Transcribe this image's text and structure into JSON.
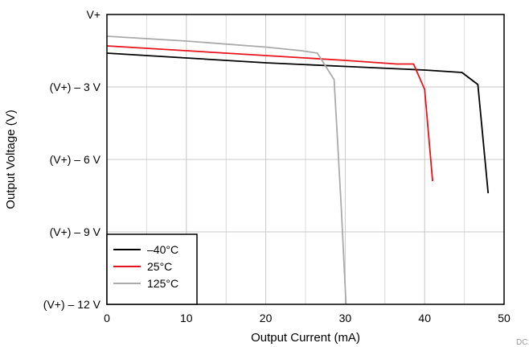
{
  "chart_data": {
    "type": "line",
    "title": "",
    "xlabel": "Output Current (mA)",
    "ylabel": "Output Voltage (V)",
    "xlim": [
      0,
      50
    ],
    "ylim": [
      -12,
      0
    ],
    "x_ticks": [
      {
        "value": 0,
        "label": "0"
      },
      {
        "value": 10,
        "label": "10"
      },
      {
        "value": 20,
        "label": "20"
      },
      {
        "value": 30,
        "label": "30"
      },
      {
        "value": 40,
        "label": "40"
      },
      {
        "value": 50,
        "label": "50"
      }
    ],
    "y_ticks": [
      {
        "value": 0,
        "label": "V+"
      },
      {
        "value": -3,
        "label": "(V+) – 3 V"
      },
      {
        "value": -6,
        "label": "(V+) – 6 V"
      },
      {
        "value": -9,
        "label": "(V+) – 9 V"
      },
      {
        "value": -12,
        "label": "(V+) – 12 V"
      }
    ],
    "grid": true,
    "legend_position": "bottom-left",
    "series": [
      {
        "name": "–40°C",
        "color": "#000000",
        "points": [
          [
            0,
            -1.6
          ],
          [
            10,
            -1.8
          ],
          [
            20,
            -2.0
          ],
          [
            30,
            -2.15
          ],
          [
            40,
            -2.3
          ],
          [
            44.7,
            -2.4
          ],
          [
            46.7,
            -2.9
          ],
          [
            48.0,
            -7.4
          ]
        ]
      },
      {
        "name": "25°C",
        "color": "#e8141b",
        "points": [
          [
            0,
            -1.3
          ],
          [
            10,
            -1.5
          ],
          [
            20,
            -1.7
          ],
          [
            30,
            -1.9
          ],
          [
            36.5,
            -2.05
          ],
          [
            38.6,
            -2.05
          ],
          [
            40.0,
            -3.1
          ],
          [
            41.0,
            -6.9
          ]
        ]
      },
      {
        "name": "125°C",
        "color": "#aaaaaa",
        "points": [
          [
            0,
            -0.9
          ],
          [
            10,
            -1.1
          ],
          [
            20,
            -1.35
          ],
          [
            24.5,
            -1.5
          ],
          [
            26.5,
            -1.6
          ],
          [
            28.6,
            -2.7
          ],
          [
            29.5,
            -8.0
          ],
          [
            30.1,
            -12.5
          ]
        ]
      }
    ],
    "watermark": "DC13"
  }
}
